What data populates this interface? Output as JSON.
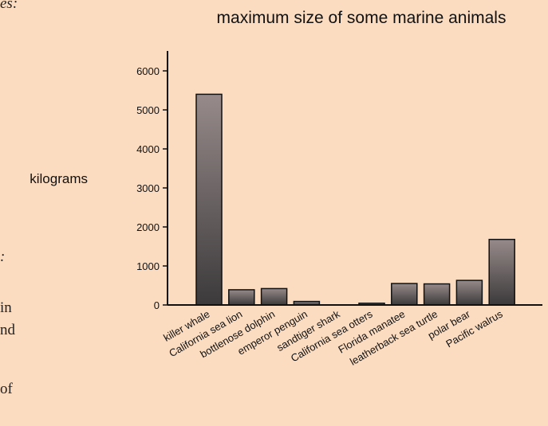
{
  "margin": {
    "line1": "es:",
    "line2": ":",
    "line3": "in",
    "line4": "nd",
    "line5": "of"
  },
  "chart_data": {
    "type": "bar",
    "title": "maximum size of some marine animals",
    "xlabel": "",
    "ylabel": "kilograms",
    "ylim": [
      0,
      6000
    ],
    "yticks": [
      0,
      1000,
      2000,
      3000,
      4000,
      5000,
      6000
    ],
    "categories": [
      "killer whale",
      "California sea lion",
      "bottlenose dolphin",
      "emperor penguin",
      "sandtiger shark",
      "California sea otters",
      "Florida manatee",
      "leatherback sea turtle",
      "polar bear",
      "Pacific walrus"
    ],
    "values": [
      5400,
      390,
      420,
      90,
      0,
      45,
      550,
      540,
      630,
      1680
    ],
    "grid": false,
    "bar_color_top": "#978a8a",
    "bar_color_bottom": "#3c3a3b"
  }
}
